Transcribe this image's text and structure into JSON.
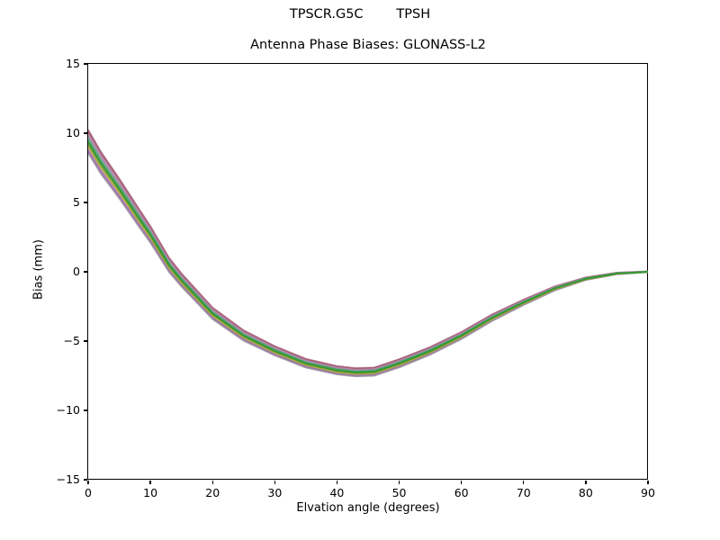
{
  "figure": {
    "background": "#ffffff",
    "frame_color": "#000000"
  },
  "chart": {
    "suptitle": "TPSCR.G5C        TPSH",
    "title": "Antenna Phase Biases: GLONASS-L2",
    "xlabel": "Elvation angle (degrees)",
    "ylabel": "Bias (mm)"
  },
  "chart_data": {
    "type": "line",
    "suptitle": "TPSCR.G5C        TPSH",
    "title": "Antenna Phase Biases: GLONASS-L2",
    "xlabel": "Elvation angle (degrees)",
    "ylabel": "Bias (mm)",
    "xlim": [
      0,
      90
    ],
    "ylim": [
      -15,
      15
    ],
    "grid": false,
    "legend": null,
    "x_ticks": {
      "values": [
        0,
        10,
        20,
        30,
        40,
        50,
        60,
        70,
        80,
        90
      ],
      "labels": [
        "0",
        "10",
        "20",
        "30",
        "40",
        "50",
        "60",
        "70",
        "80",
        "90"
      ]
    },
    "y_ticks": {
      "values": [
        15,
        10,
        5,
        0,
        -5,
        -10,
        -15
      ],
      "labels": [
        "15",
        "10",
        "5",
        "0",
        "−5",
        "−10",
        "−15"
      ]
    },
    "x": [
      0,
      2,
      5,
      8,
      10,
      13,
      15,
      20,
      25,
      30,
      35,
      40,
      43,
      46,
      50,
      55,
      60,
      65,
      70,
      75,
      80,
      85,
      90
    ],
    "series": [
      {
        "name": "line-1",
        "color": "#b06a85",
        "values": [
          10.25,
          8.7,
          6.72,
          4.65,
          3.3,
          1.02,
          -0.12,
          -2.58,
          -4.22,
          -5.36,
          -6.28,
          -6.8,
          -6.95,
          -6.9,
          -6.3,
          -5.42,
          -4.34,
          -3.06,
          -2.0,
          -1.05,
          -0.4,
          -0.06,
          0.03
        ]
      },
      {
        "name": "line-2",
        "color": "#93505e",
        "values": [
          10.1,
          8.56,
          6.59,
          4.53,
          3.19,
          0.93,
          -0.21,
          -2.66,
          -4.29,
          -5.42,
          -6.34,
          -6.85,
          -7.0,
          -6.95,
          -6.35,
          -5.47,
          -4.39,
          -3.1,
          -2.04,
          -1.08,
          -0.42,
          -0.07,
          0.02
        ]
      },
      {
        "name": "line-3",
        "color": "#c77fb4",
        "values": [
          9.94,
          8.41,
          6.46,
          4.42,
          3.08,
          0.83,
          -0.29,
          -2.73,
          -4.36,
          -5.48,
          -6.4,
          -6.91,
          -7.06,
          -7.01,
          -6.41,
          -5.52,
          -4.43,
          -3.15,
          -2.07,
          -1.1,
          -0.44,
          -0.08,
          0.02
        ]
      },
      {
        "name": "line-4",
        "color": "#8f8f8f",
        "values": [
          9.78,
          8.26,
          6.32,
          4.29,
          2.97,
          0.73,
          -0.38,
          -2.81,
          -4.43,
          -5.55,
          -6.46,
          -6.97,
          -7.12,
          -7.07,
          -6.47,
          -5.57,
          -4.48,
          -3.19,
          -2.11,
          -1.13,
          -0.46,
          -0.09,
          0.01
        ]
      },
      {
        "name": "line-5",
        "color": "#6f9ba1",
        "values": [
          9.63,
          8.12,
          6.19,
          4.18,
          2.86,
          0.64,
          -0.47,
          -2.89,
          -4.5,
          -5.61,
          -6.51,
          -7.02,
          -7.17,
          -7.12,
          -6.52,
          -5.62,
          -4.53,
          -3.24,
          -2.15,
          -1.16,
          -0.47,
          -0.1,
          0.01
        ]
      },
      {
        "name": "line-10",
        "color": "#c583bb",
        "values": [
          8.86,
          7.39,
          5.54,
          3.58,
          2.32,
          0.17,
          -0.91,
          -3.27,
          -4.84,
          -5.92,
          -6.81,
          -7.29,
          -7.44,
          -7.39,
          -6.79,
          -5.88,
          -4.77,
          -3.45,
          -2.33,
          -1.3,
          -0.56,
          -0.16,
          -0.02
        ]
      },
      {
        "name": "line-11",
        "color": "#8f62a8",
        "values": [
          8.7,
          7.24,
          5.41,
          3.47,
          2.21,
          0.07,
          -0.99,
          -3.34,
          -4.91,
          -5.98,
          -6.86,
          -7.35,
          -7.5,
          -7.45,
          -6.85,
          -5.93,
          -4.81,
          -3.5,
          -2.36,
          -1.32,
          -0.58,
          -0.17,
          -0.02
        ]
      },
      {
        "name": "line-12",
        "color": "#9b8fa0",
        "values": [
          8.55,
          7.1,
          5.28,
          3.35,
          2.1,
          -0.02,
          -1.08,
          -3.42,
          -4.98,
          -6.04,
          -6.92,
          -7.4,
          -7.55,
          -7.5,
          -6.9,
          -5.98,
          -4.86,
          -3.54,
          -2.4,
          -1.35,
          -0.6,
          -0.18,
          -0.03
        ]
      },
      {
        "name": "line-8",
        "color": "#7e9a30",
        "values": [
          9.17,
          7.68,
          5.81,
          3.82,
          2.54,
          0.36,
          -0.73,
          -3.11,
          -4.7,
          -5.79,
          -6.69,
          -7.18,
          -7.33,
          -7.28,
          -6.68,
          -5.78,
          -4.67,
          -3.36,
          -2.25,
          -1.24,
          -0.53,
          -0.14,
          -0.01
        ]
      },
      {
        "name": "line-9",
        "color": "#a8a83c",
        "values": [
          9.02,
          7.54,
          5.68,
          3.71,
          2.43,
          0.27,
          -0.82,
          -3.19,
          -4.77,
          -5.85,
          -6.74,
          -7.24,
          -7.39,
          -7.34,
          -6.74,
          -5.83,
          -4.72,
          -3.41,
          -2.29,
          -1.27,
          -0.55,
          -0.15,
          -0.01
        ]
      },
      {
        "name": "line-7",
        "color": "#2a8a2a",
        "values": [
          9.32,
          7.83,
          5.94,
          3.94,
          2.65,
          0.45,
          -0.64,
          -3.04,
          -4.63,
          -5.73,
          -6.63,
          -7.13,
          -7.28,
          -7.23,
          -6.63,
          -5.73,
          -4.62,
          -3.32,
          -2.22,
          -1.21,
          -0.51,
          -0.13,
          0.0
        ]
      },
      {
        "name": "line-6",
        "color": "#2f9e33",
        "values": [
          9.48,
          7.97,
          6.06,
          4.06,
          2.75,
          0.55,
          -0.56,
          -2.96,
          -4.57,
          -5.67,
          -6.57,
          -7.07,
          -7.22,
          -7.17,
          -6.57,
          -5.67,
          -4.58,
          -3.28,
          -2.18,
          -1.19,
          -0.49,
          -0.11,
          0.0
        ]
      }
    ]
  }
}
